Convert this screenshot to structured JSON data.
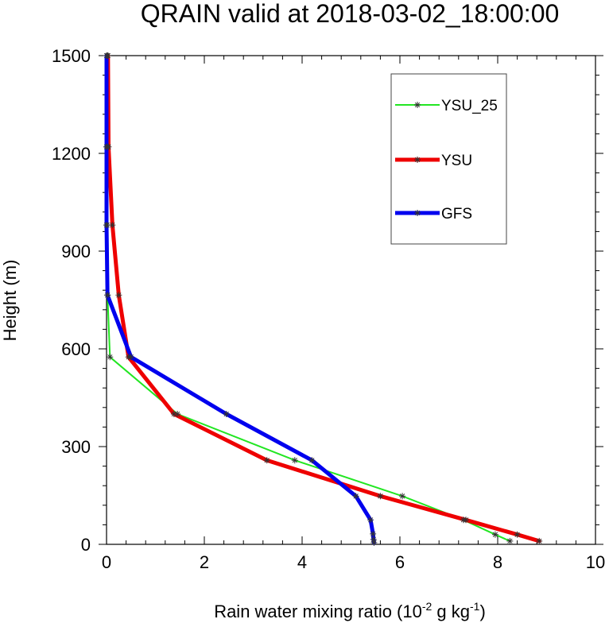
{
  "chart_data": {
    "type": "line",
    "title": "QRAIN valid at 2018-03-02_18:00:00",
    "xlabel": {
      "text": "Rain water mixing ratio (10",
      "sup1": "-2",
      "mid": " g kg",
      "sup2": "-1",
      "end": ")"
    },
    "ylabel": "Height (m)",
    "xlim": [
      0,
      10
    ],
    "ylim": [
      0,
      1500
    ],
    "xticks": [
      0,
      2,
      4,
      6,
      8,
      10
    ],
    "yticks": [
      0,
      300,
      600,
      900,
      1200,
      1500
    ],
    "grid": false,
    "legend_position": "top-right",
    "series": [
      {
        "name": "YSU_25",
        "color": "#22e622",
        "x": [
          8.25,
          7.95,
          7.3,
          6.05,
          3.85,
          1.45,
          0.07,
          0.02,
          0.01,
          0.01,
          0.02
        ],
        "y": [
          10,
          30,
          75,
          148,
          258,
          400,
          575,
          765,
          980,
          1220,
          1500
        ]
      },
      {
        "name": "YSU",
        "color": "#ee0000",
        "x": [
          8.85,
          8.4,
          7.35,
          5.6,
          3.28,
          1.38,
          0.45,
          0.25,
          0.12,
          0.04,
          0.03
        ],
        "y": [
          10,
          30,
          75,
          148,
          258,
          400,
          575,
          765,
          980,
          1220,
          1500
        ]
      },
      {
        "name": "GFS",
        "color": "#0000ee",
        "x": [
          5.47,
          5.46,
          5.45,
          5.4,
          5.1,
          4.2,
          2.45,
          0.5,
          0.02,
          0.0,
          0.0,
          0.0
        ],
        "y": [
          5,
          15,
          32,
          75,
          148,
          258,
          400,
          575,
          765,
          980,
          1220,
          1500
        ]
      }
    ]
  }
}
